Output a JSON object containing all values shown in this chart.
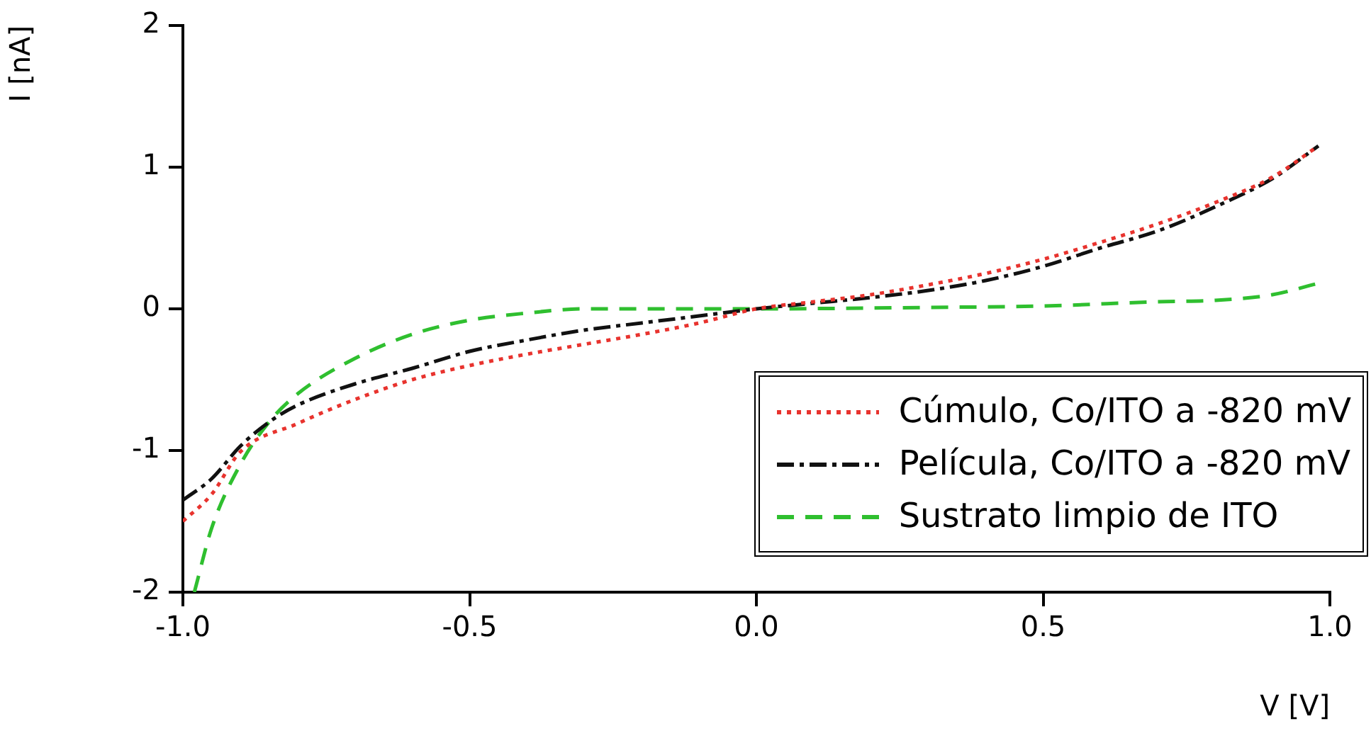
{
  "chart_data": {
    "type": "line",
    "xlabel": "V [V]",
    "ylabel": "I [nA]",
    "xlim": [
      -1.0,
      1.0
    ],
    "xticks": [
      {
        "value": -1,
        "label": "-1.0"
      },
      {
        "value": -0.5,
        "label": "-0.5"
      },
      {
        "value": 0,
        "label": "0.0"
      },
      {
        "value": 0.5,
        "label": "0.5"
      },
      {
        "value": 1,
        "label": "1.0"
      }
    ],
    "ylim": [
      -2,
      2
    ],
    "yticks": [
      -2,
      -1,
      0,
      1,
      2
    ],
    "legend": "bottom right",
    "marker": "none",
    "series": [
      {
        "name": "Cúmulo, Co/ITO a -820 mV",
        "color": "#e8332e",
        "line_style": "dotted",
        "x": [
          -1.0,
          -0.95,
          -0.9,
          -0.8,
          -0.7,
          -0.6,
          -0.5,
          -0.4,
          -0.3,
          -0.2,
          -0.1,
          0,
          0.1,
          0.2,
          0.3,
          0.4,
          0.5,
          0.6,
          0.7,
          0.8,
          0.9,
          0.98
        ],
        "values": [
          -1.5,
          -1.31,
          -1.01,
          -0.81,
          -0.64,
          -0.5,
          -0.4,
          -0.32,
          -0.25,
          -0.18,
          -0.1,
          0,
          0.05,
          0.1,
          0.17,
          0.25,
          0.35,
          0.47,
          0.6,
          0.75,
          0.93,
          1.15
        ]
      },
      {
        "name": "Película, Co/ITO a -820 mV",
        "color": "#111111",
        "line_style": "dashdot",
        "x": [
          -1.0,
          -0.95,
          -0.9,
          -0.85,
          -0.8,
          -0.7,
          -0.6,
          -0.5,
          -0.4,
          -0.3,
          -0.2,
          -0.1,
          0,
          0.1,
          0.2,
          0.3,
          0.4,
          0.5,
          0.6,
          0.7,
          0.8,
          0.9,
          0.98
        ],
        "values": [
          -1.35,
          -1.2,
          -0.97,
          -0.8,
          -0.68,
          -0.53,
          -0.42,
          -0.3,
          -0.22,
          -0.15,
          -0.1,
          -0.05,
          0,
          0.04,
          0.08,
          0.13,
          0.2,
          0.3,
          0.43,
          0.55,
          0.72,
          0.92,
          1.15
        ]
      },
      {
        "name": "Sustrato limpio de ITO",
        "color": "#2fbf2f",
        "line_style": "dashed",
        "x": [
          -0.98,
          -0.95,
          -0.9,
          -0.85,
          -0.8,
          -0.7,
          -0.6,
          -0.5,
          -0.4,
          -0.3,
          0,
          0.3,
          0.5,
          0.7,
          0.8,
          0.9,
          0.98
        ],
        "values": [
          -2.0,
          -1.55,
          -1.1,
          -0.8,
          -0.6,
          -0.35,
          -0.18,
          -0.08,
          -0.03,
          0,
          0,
          0.01,
          0.02,
          0.05,
          0.06,
          0.1,
          0.18
        ]
      }
    ]
  }
}
